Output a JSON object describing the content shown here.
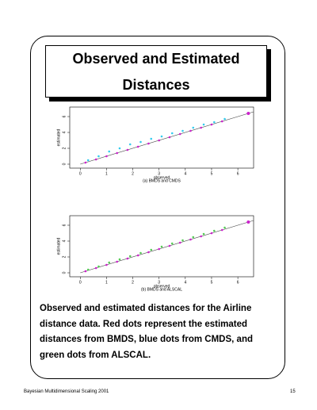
{
  "title": "Observed and Estimated Distances",
  "chart_data": [
    {
      "type": "scatter",
      "xlabel": "observed",
      "subtitle": "(a) BMDS and CMDS",
      "ylabel": "estimated",
      "xlim": [
        -0.4,
        6.6
      ],
      "ylim": [
        -0.5,
        7.2
      ],
      "xticks": [
        0,
        1,
        2,
        3,
        4,
        5,
        6
      ],
      "yticks": [
        0,
        2,
        4,
        6
      ],
      "series": [
        {
          "color": "#33ccee",
          "x": [
            0.3,
            0.7,
            1.1,
            1.5,
            1.9,
            2.3,
            2.7,
            3.1,
            3.5,
            3.9,
            4.3,
            4.7,
            5.1,
            5.5
          ],
          "y": [
            0.5,
            1.0,
            1.6,
            2.0,
            2.5,
            2.8,
            3.2,
            3.5,
            3.9,
            4.2,
            4.6,
            5.0,
            5.3,
            5.7
          ]
        },
        {
          "color": "#cc22cc",
          "x": [
            0.2,
            0.6,
            1.0,
            1.4,
            1.8,
            2.2,
            2.6,
            3.0,
            3.4,
            3.8,
            4.2,
            4.6,
            5.0,
            5.4,
            6.4
          ],
          "y": [
            0.2,
            0.6,
            1.0,
            1.4,
            1.8,
            2.2,
            2.6,
            3.0,
            3.4,
            3.8,
            4.2,
            4.6,
            5.0,
            5.4,
            6.4
          ]
        }
      ]
    },
    {
      "type": "scatter",
      "xlabel": "observed",
      "subtitle": "(b) BMDS and ALSCAL",
      "ylabel": "estimated",
      "xlim": [
        -0.4,
        6.6
      ],
      "ylim": [
        -0.5,
        7.2
      ],
      "xticks": [
        0,
        1,
        2,
        3,
        4,
        5,
        6
      ],
      "yticks": [
        0,
        2,
        4,
        6
      ],
      "series": [
        {
          "color": "#55cc55",
          "x": [
            0.3,
            0.7,
            1.1,
            1.5,
            1.9,
            2.3,
            2.7,
            3.1,
            3.5,
            3.9,
            4.3,
            4.7,
            5.1,
            5.5
          ],
          "y": [
            0.4,
            0.8,
            1.3,
            1.7,
            2.1,
            2.5,
            2.9,
            3.3,
            3.7,
            4.1,
            4.5,
            4.9,
            5.3,
            5.7
          ]
        },
        {
          "color": "#cc22cc",
          "x": [
            0.2,
            0.6,
            1.0,
            1.4,
            1.8,
            2.2,
            2.6,
            3.0,
            3.4,
            3.8,
            4.2,
            4.6,
            5.0,
            5.4,
            6.4
          ],
          "y": [
            0.2,
            0.6,
            1.0,
            1.4,
            1.8,
            2.2,
            2.6,
            3.0,
            3.4,
            3.8,
            4.2,
            4.6,
            5.0,
            5.4,
            6.4
          ]
        }
      ]
    }
  ],
  "caption": "Observed and estimated distances for the Airline distance data. Red dots represent the estimated distances from BMDS, blue dots from CMDS, and green dots from ALSCAL.",
  "footer": "Bayesian Multidimensional Scaling 2001",
  "page": "15"
}
